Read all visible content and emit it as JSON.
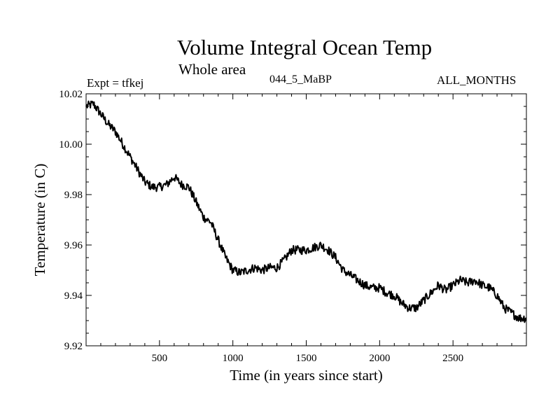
{
  "header": {
    "title": "Volume Integral Ocean Temp",
    "subtitle": "Whole area",
    "expt_label": "Expt = tfkej",
    "run_code": "044_5_MaBP",
    "months_label": "ALL_MONTHS"
  },
  "chart_data": {
    "type": "line",
    "title": "Volume Integral Ocean Temp",
    "subtitle": "Whole area",
    "xlabel": "Time (in years since start)",
    "ylabel": "Temperature (in C)",
    "xlim": [
      0,
      3000
    ],
    "ylim": [
      9.92,
      10.02
    ],
    "x_ticks": [
      500,
      1000,
      1500,
      2000,
      2500
    ],
    "y_ticks": [
      9.92,
      9.94,
      9.96,
      9.98,
      10.0,
      10.02
    ],
    "y_tick_labels": [
      "9.92",
      "9.94",
      "9.96",
      "9.98",
      "10.00",
      "10.02"
    ],
    "grid": false,
    "series": [
      {
        "x": [
          0,
          50,
          100,
          150,
          200,
          250,
          300,
          350,
          400,
          450,
          500,
          550,
          600,
          650,
          700,
          750,
          800,
          850,
          900,
          950,
          1000,
          1050,
          1100,
          1150,
          1200,
          1250,
          1300,
          1350,
          1400,
          1450,
          1500,
          1550,
          1600,
          1650,
          1700,
          1750,
          1800,
          1850,
          1900,
          1950,
          2000,
          2050,
          2100,
          2150,
          2200,
          2250,
          2300,
          2350,
          2400,
          2450,
          2500,
          2550,
          2600,
          2650,
          2700,
          2750,
          2800,
          2850,
          2900,
          2950,
          3000
        ],
        "y": [
          10.015,
          10.016,
          10.012,
          10.008,
          10.005,
          10.0,
          9.995,
          9.99,
          9.985,
          9.983,
          9.983,
          9.984,
          9.987,
          9.984,
          9.983,
          9.977,
          9.971,
          9.969,
          9.962,
          9.955,
          9.95,
          9.949,
          9.95,
          9.951,
          9.95,
          9.951,
          9.951,
          9.954,
          9.958,
          9.958,
          9.958,
          9.959,
          9.96,
          9.958,
          9.955,
          9.95,
          9.948,
          9.946,
          9.944,
          9.943,
          9.943,
          9.941,
          9.94,
          9.937,
          9.935,
          9.935,
          9.938,
          9.941,
          9.944,
          9.942,
          9.944,
          9.946,
          9.945,
          9.946,
          9.944,
          9.943,
          9.94,
          9.935,
          9.933,
          9.931,
          9.931
        ]
      }
    ]
  }
}
